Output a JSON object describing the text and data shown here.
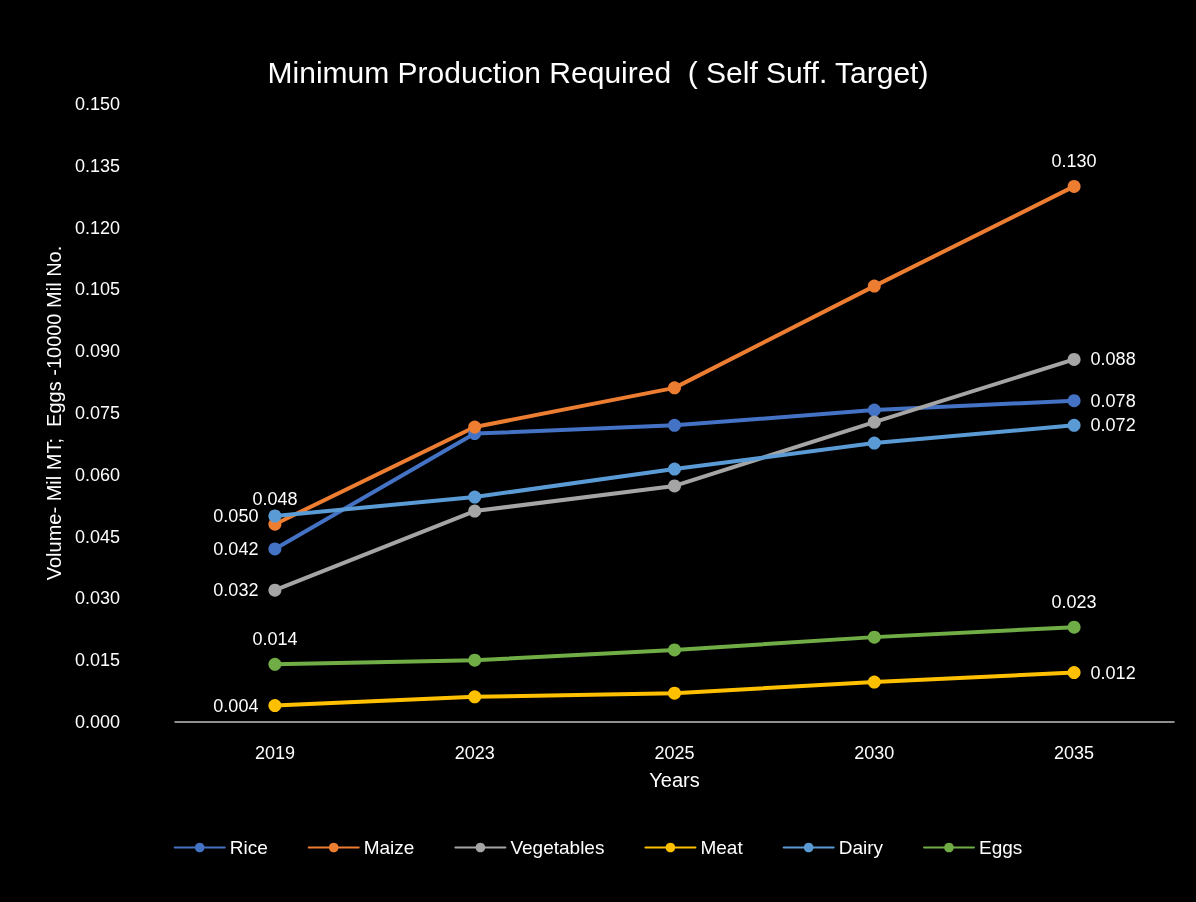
{
  "chart_data": {
    "type": "line",
    "title": "Minimum Production Required  ( Self Suff. Target)",
    "xlabel": "Years",
    "ylabel": "Volume- Mil MT;  Eggs -10000 Mil No.",
    "categories": [
      "2019",
      "2023",
      "2025",
      "2030",
      "2035"
    ],
    "ylim": [
      0,
      0.15
    ],
    "yticks": [
      {
        "value": 0,
        "label": "0.000"
      },
      {
        "value": 0.015,
        "label": "0.015"
      },
      {
        "value": 0.03,
        "label": "0.030"
      },
      {
        "value": 0.045,
        "label": "0.045"
      },
      {
        "value": 0.06,
        "label": "0.060"
      },
      {
        "value": 0.075,
        "label": "0.075"
      },
      {
        "value": 0.09,
        "label": "0.090"
      },
      {
        "value": 0.105,
        "label": "0.105"
      },
      {
        "value": 0.12,
        "label": "0.120"
      },
      {
        "value": 0.135,
        "label": "0.135"
      },
      {
        "value": 0.15,
        "label": "0.150"
      }
    ],
    "grid": false,
    "legend": "bottom",
    "marker": "circle",
    "line_style": "solid",
    "series": [
      {
        "name": "Rice",
        "color": "#4472c4",
        "values": [
          0.042,
          0.07,
          0.072,
          0.0757,
          0.078
        ],
        "value_labels": [
          "0.042",
          null,
          null,
          null,
          "0.078"
        ]
      },
      {
        "name": "Maize",
        "color": "#ed7d31",
        "values": [
          0.048,
          0.0716,
          0.0811,
          0.1058,
          0.13
        ],
        "value_labels": [
          "0.048",
          null,
          null,
          null,
          "0.130"
        ]
      },
      {
        "name": "Vegetables",
        "color": "#a5a5a5",
        "values": [
          0.032,
          0.0512,
          0.0573,
          0.0728,
          0.088
        ],
        "value_labels": [
          "0.032",
          null,
          null,
          null,
          "0.088"
        ]
      },
      {
        "name": "Meat",
        "color": "#ffc000",
        "values": [
          0.004,
          0.0061,
          0.007,
          0.0097,
          0.012
        ],
        "value_labels": [
          "0.004",
          null,
          null,
          null,
          "0.012"
        ]
      },
      {
        "name": "Dairy",
        "color": "#5b9bd5",
        "values": [
          0.05,
          0.0546,
          0.0614,
          0.0677,
          0.072
        ],
        "value_labels": [
          "0.050",
          null,
          null,
          null,
          "0.072"
        ]
      },
      {
        "name": "Eggs",
        "color": "#70ad47",
        "values": [
          0.014,
          0.015,
          0.0175,
          0.0206,
          0.023
        ],
        "value_labels": [
          "0.014",
          null,
          null,
          null,
          "0.023"
        ]
      }
    ]
  }
}
